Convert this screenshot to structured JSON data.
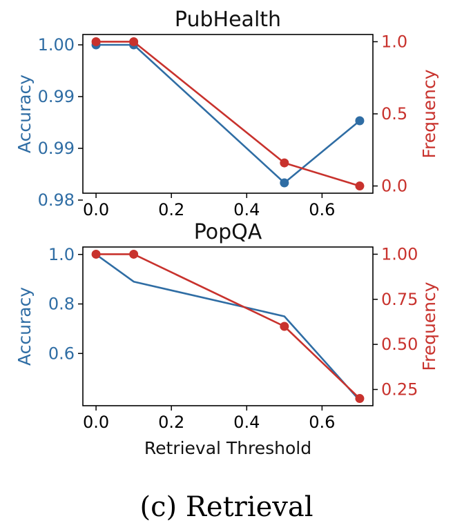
{
  "caption": "(c) Retrieval",
  "colors": {
    "accuracy": "#2f6da4",
    "frequency": "#c8322d"
  },
  "chart_data": [
    {
      "type": "line",
      "title": "PubHealth",
      "xlabel": "",
      "ylabel_left": "Accuracy",
      "ylabel_right": "Frequency",
      "x": [
        0.0,
        0.1,
        0.5,
        0.7
      ],
      "xlim": [
        -0.035,
        0.735
      ],
      "x_ticks": [
        0.0,
        0.2,
        0.4,
        0.6
      ],
      "x_tick_labels": [
        "0.0",
        "0.2",
        "0.4",
        "0.6"
      ],
      "y_left_lim": [
        0.9785,
        1.0015
      ],
      "y_left_ticks": [
        1.0,
        0.9925,
        0.985,
        0.9775
      ],
      "y_left_tick_labels": [
        "1.00",
        "0.99",
        "0.99",
        "0.98"
      ],
      "y_right_lim": [
        -0.05,
        1.05
      ],
      "y_right_ticks": [
        1.0,
        0.5,
        0.0
      ],
      "y_right_tick_labels": [
        "1.0",
        "0.5",
        "0.0"
      ],
      "series": [
        {
          "name": "Accuracy",
          "axis": "left",
          "values": [
            1.0,
            1.0,
            0.98,
            0.989
          ],
          "markers": [
            true,
            true,
            true,
            true
          ]
        },
        {
          "name": "Frequency",
          "axis": "right",
          "values": [
            1.0,
            1.0,
            0.16,
            0.0
          ],
          "markers": [
            true,
            true,
            true,
            true
          ]
        }
      ]
    },
    {
      "type": "line",
      "title": "PopQA",
      "xlabel": "Retrieval Threshold",
      "ylabel_left": "Accuracy",
      "ylabel_right": "Frequency",
      "x": [
        0.0,
        0.1,
        0.5,
        0.7
      ],
      "xlim": [
        -0.035,
        0.735
      ],
      "x_ticks": [
        0.0,
        0.2,
        0.4,
        0.6
      ],
      "x_tick_labels": [
        "0.0",
        "0.2",
        "0.4",
        "0.6"
      ],
      "y_left_lim": [
        0.389,
        1.03
      ],
      "y_left_ticks": [
        1.0,
        0.8,
        0.6
      ],
      "y_left_tick_labels": [
        "1.0",
        "0.8",
        "0.6"
      ],
      "y_right_lim": [
        0.16,
        1.04
      ],
      "y_right_ticks": [
        1.0,
        0.75,
        0.5,
        0.25
      ],
      "y_right_tick_labels": [
        "1.00",
        "0.75",
        "0.50",
        "0.25"
      ],
      "series": [
        {
          "name": "Accuracy",
          "axis": "left",
          "values": [
            1.0,
            0.89,
            0.75,
            0.41
          ],
          "markers": [
            false,
            false,
            false,
            false
          ]
        },
        {
          "name": "Frequency",
          "axis": "right",
          "values": [
            1.0,
            1.0,
            0.6,
            0.2
          ],
          "markers": [
            true,
            true,
            true,
            true
          ]
        }
      ]
    }
  ]
}
